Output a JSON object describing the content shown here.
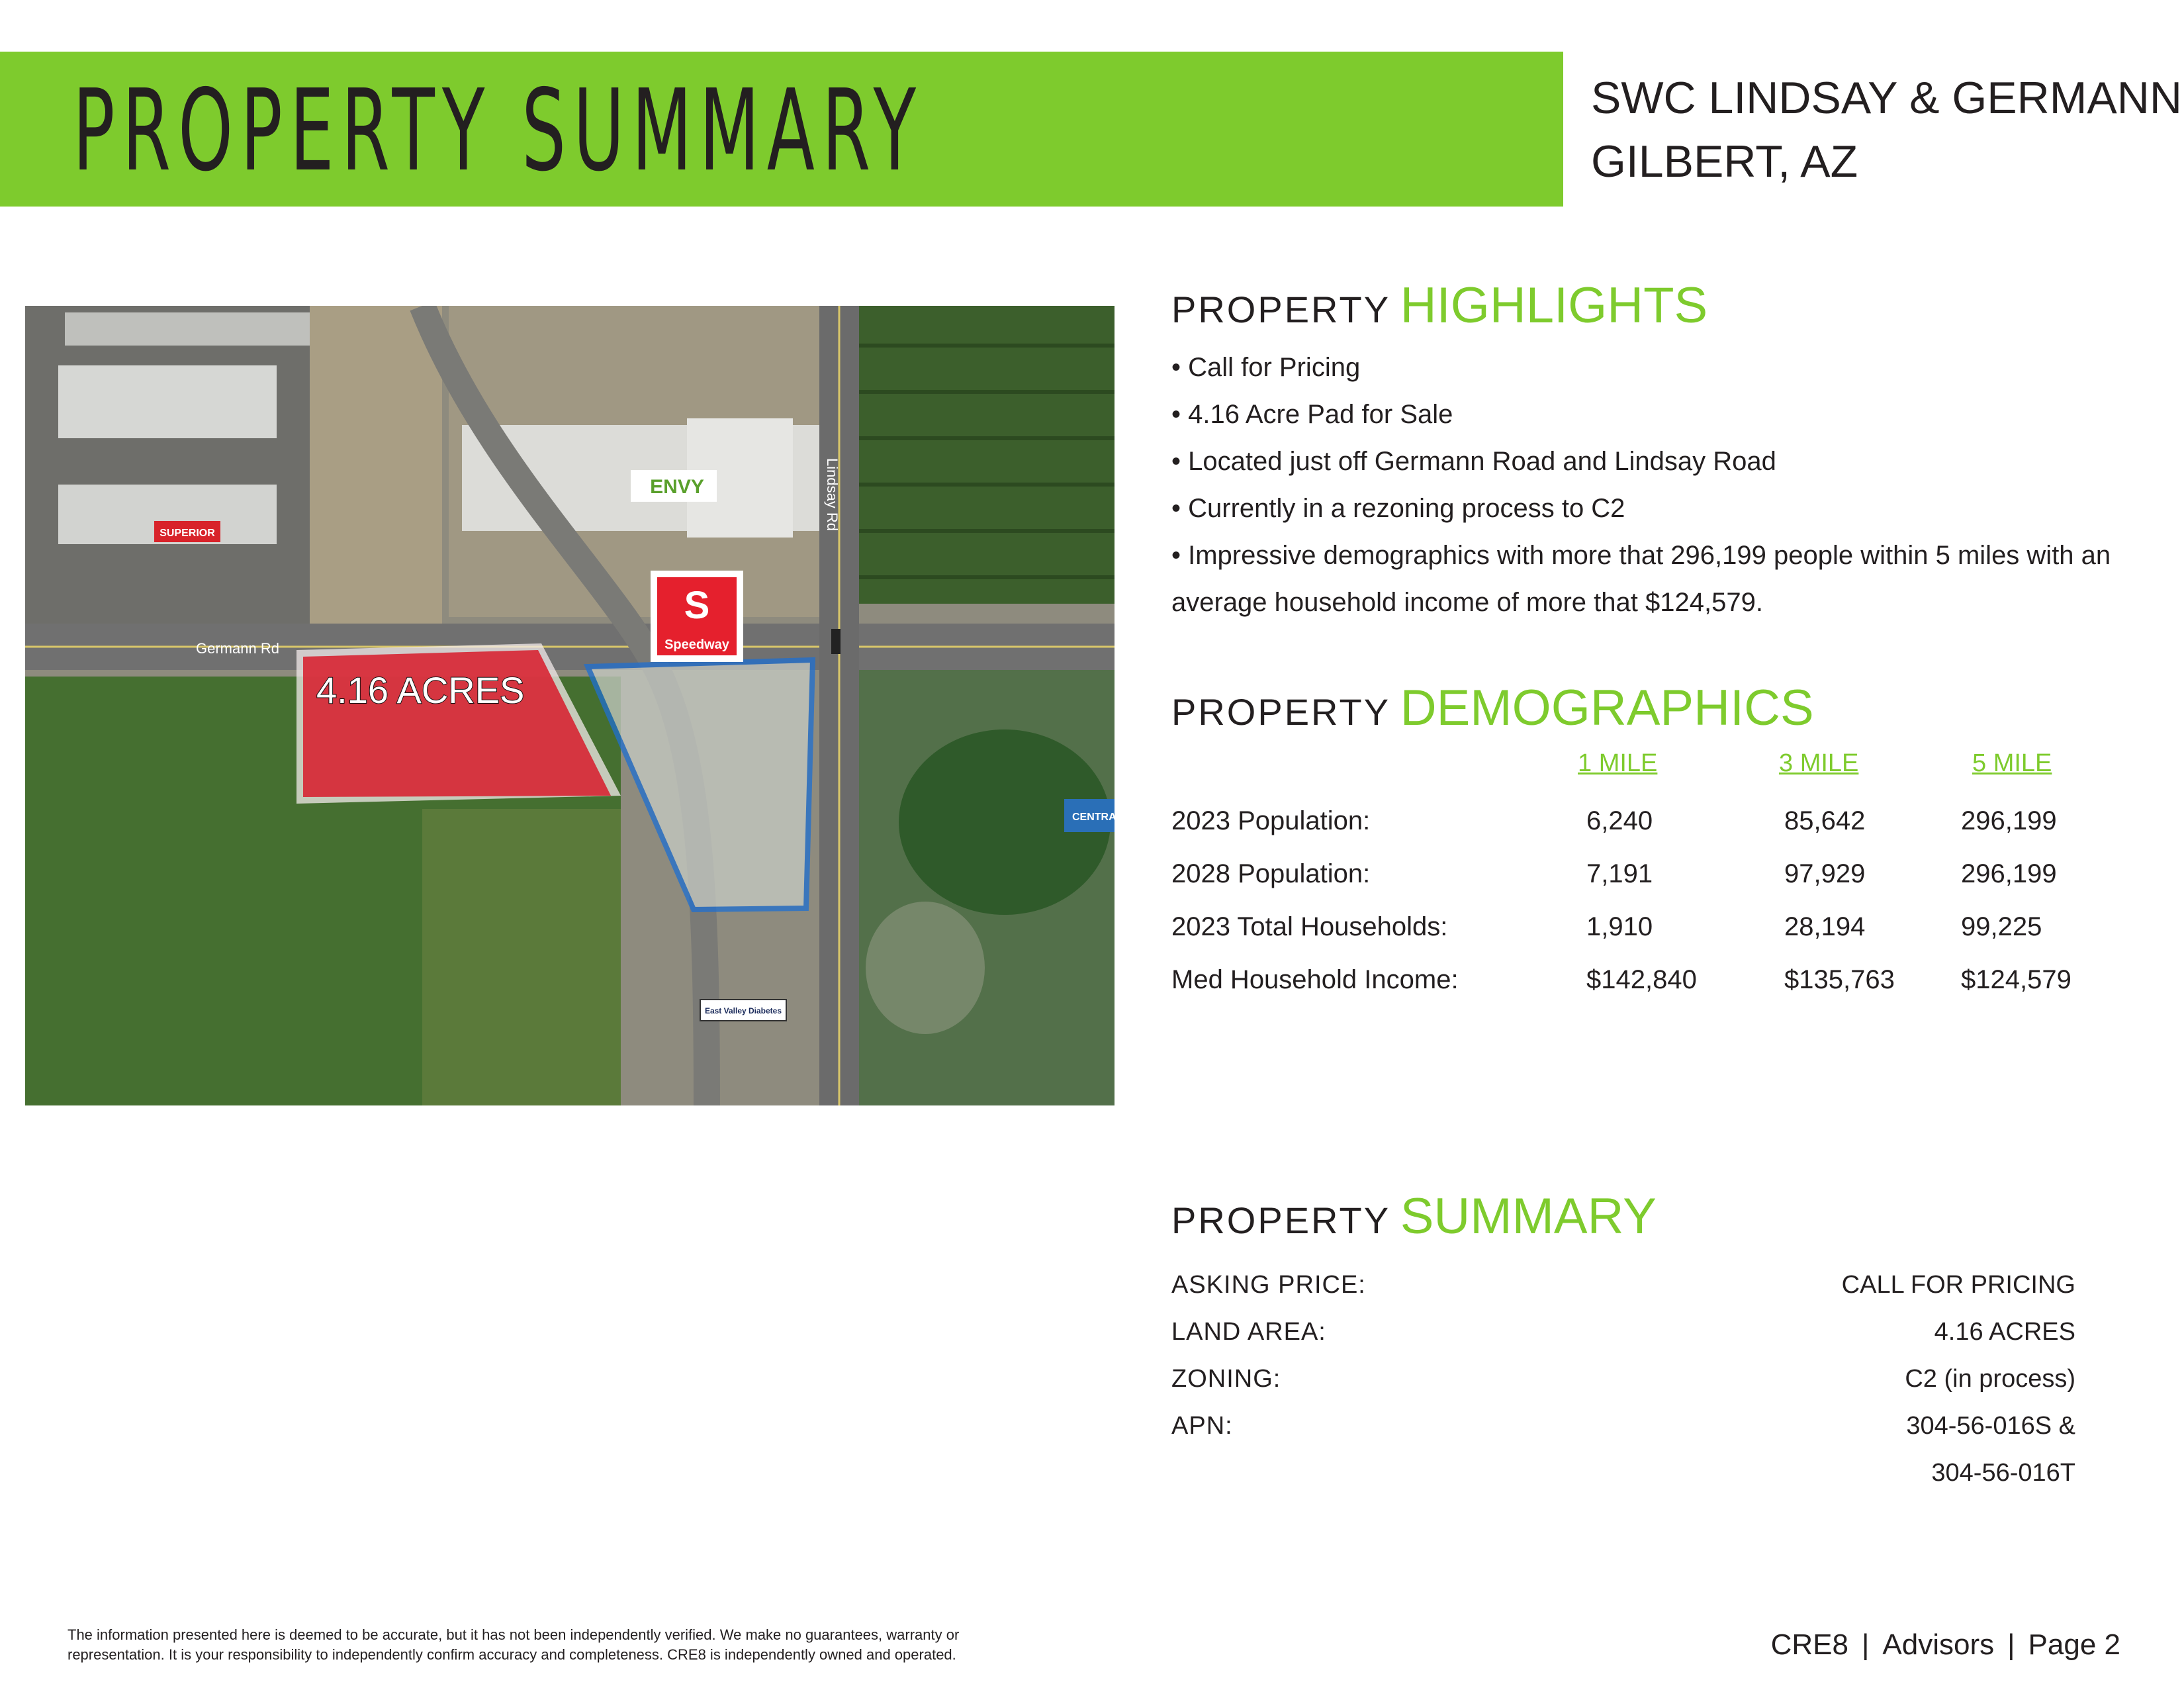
{
  "header": {
    "title": "PROPERTY SUMMARY",
    "address_line1": "SWC LINDSAY & GERMANN",
    "address_line2": "GILBERT, AZ"
  },
  "map": {
    "road_labels": [
      "Germann Rd",
      "Lindsay Rd"
    ],
    "parcel_label": "4.16 ACRES",
    "businesses": [
      "ENVY",
      "Speedway",
      "SUPERIOR",
      "East Valley Diabetes",
      "CENTRA"
    ],
    "colors": {
      "parcel": "#d7202f",
      "outline": "#1f6fd1",
      "field": "#3d6d2c",
      "road": "#6f6f6f"
    }
  },
  "highlights": {
    "prefix": "PROPERTY",
    "title": "HIGHLIGHTS",
    "items": [
      "• Call for Pricing",
      "• 4.16 Acre Pad for Sale",
      "• Located just off Germann Road and Lindsay Road",
      "• Currently in a rezoning process to C2",
      "• Impressive demographics with more that 296,199 people within 5 miles with an",
      "average household income of more that $124,579."
    ]
  },
  "demographics": {
    "prefix": "PROPERTY",
    "title": "DEMOGRAPHICS",
    "columns": [
      "1 MILE",
      "3 MILE",
      "5 MILE"
    ],
    "rows": [
      {
        "label": "2023 Population:",
        "values": [
          "6,240",
          "85,642",
          "296,199"
        ]
      },
      {
        "label": "2028 Population:",
        "values": [
          "7,191",
          "97,929",
          "296,199"
        ]
      },
      {
        "label": "2023 Total Households:",
        "values": [
          "1,910",
          "28,194",
          "99,225"
        ]
      },
      {
        "label": "Med Household Income:",
        "values": [
          "$142,840",
          "$135,763",
          "$124,579"
        ]
      }
    ]
  },
  "summary": {
    "prefix": "PROPERTY",
    "title": "SUMMARY",
    "rows": [
      {
        "label": "ASKING PRICE:",
        "value": "CALL FOR PRICING"
      },
      {
        "label": "LAND AREA:",
        "value": "4.16 ACRES"
      },
      {
        "label": "ZONING:",
        "value": "C2 (in process)"
      },
      {
        "label": "APN:",
        "value": "304-56-016S &"
      },
      {
        "label": "",
        "value": "304-56-016T"
      }
    ]
  },
  "footer": {
    "disclaimer_line1": "The information presented here is deemed to be accurate, but it has not been independently verified. We make no guarantees, warranty or",
    "disclaimer_line2": "representation. It is your responsibility to independently confirm accuracy and completeness. CRE8 is independently owned and operated.",
    "brand": "CRE8",
    "company": "Advisors",
    "page": "Page 2",
    "separator": "|"
  }
}
